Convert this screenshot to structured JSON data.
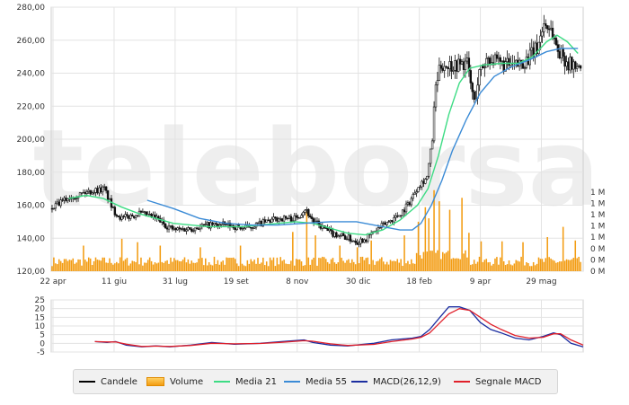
{
  "chart_data": {
    "type": "candlestick",
    "price_axis": {
      "min": 120,
      "max": 280,
      "ticks": [
        "120,00",
        "140,00",
        "160,00",
        "180,00",
        "200,00",
        "220,00",
        "240,00",
        "260,00",
        "280,00"
      ]
    },
    "volume_axis": {
      "ticks": [
        "0 M",
        "0 M",
        "0 M",
        "1 M",
        "1 M",
        "1 M",
        "1 M",
        "1 M"
      ]
    },
    "x_axis": {
      "labels": [
        "22 apr",
        "11 giu",
        "31 lug",
        "19 set",
        "8 nov",
        "30 dic",
        "18 feb",
        "9 apr",
        "29 mag"
      ],
      "label_index": [
        0,
        35,
        70,
        105,
        140,
        175,
        210,
        245,
        280
      ]
    },
    "price_points": [
      [
        0,
        158
      ],
      [
        10,
        165
      ],
      [
        20,
        168
      ],
      [
        30,
        170
      ],
      [
        35,
        157
      ],
      [
        40,
        152
      ],
      [
        50,
        155
      ],
      [
        60,
        152
      ],
      [
        65,
        148
      ],
      [
        70,
        145
      ],
      [
        80,
        146
      ],
      [
        90,
        148
      ],
      [
        100,
        148
      ],
      [
        110,
        146
      ],
      [
        120,
        149
      ],
      [
        130,
        152
      ],
      [
        140,
        152
      ],
      [
        145,
        158
      ],
      [
        150,
        150
      ],
      [
        160,
        143
      ],
      [
        165,
        142
      ],
      [
        175,
        138
      ],
      [
        180,
        140
      ],
      [
        185,
        144
      ],
      [
        190,
        148
      ],
      [
        200,
        155
      ],
      [
        205,
        162
      ],
      [
        210,
        172
      ],
      [
        215,
        177
      ],
      [
        218,
        200
      ],
      [
        220,
        232
      ],
      [
        223,
        245
      ],
      [
        230,
        245
      ],
      [
        238,
        246
      ],
      [
        242,
        222
      ],
      [
        245,
        240
      ],
      [
        250,
        250
      ],
      [
        255,
        246
      ],
      [
        265,
        244
      ],
      [
        272,
        248
      ],
      [
        278,
        255
      ],
      [
        282,
        270
      ],
      [
        286,
        267
      ],
      [
        290,
        254
      ],
      [
        296,
        246
      ],
      [
        302,
        243
      ]
    ],
    "series": [
      {
        "name": "Media 21",
        "color": "#3ddc84",
        "points": [
          [
            10,
            164
          ],
          [
            20,
            166
          ],
          [
            30,
            164
          ],
          [
            40,
            159
          ],
          [
            50,
            155
          ],
          [
            60,
            152
          ],
          [
            70,
            149
          ],
          [
            80,
            148
          ],
          [
            90,
            147
          ],
          [
            100,
            147
          ],
          [
            110,
            147
          ],
          [
            120,
            148
          ],
          [
            130,
            149
          ],
          [
            140,
            150
          ],
          [
            150,
            149
          ],
          [
            160,
            146
          ],
          [
            170,
            143
          ],
          [
            180,
            142
          ],
          [
            190,
            145
          ],
          [
            200,
            151
          ],
          [
            210,
            160
          ],
          [
            216,
            170
          ],
          [
            222,
            190
          ],
          [
            228,
            215
          ],
          [
            234,
            234
          ],
          [
            240,
            243
          ],
          [
            248,
            245
          ],
          [
            258,
            246
          ],
          [
            268,
            246
          ],
          [
            276,
            250
          ],
          [
            284,
            259
          ],
          [
            290,
            263
          ],
          [
            296,
            259
          ],
          [
            302,
            252
          ]
        ]
      },
      {
        "name": "Media 55",
        "color": "#3b8bd6",
        "points": [
          [
            55,
            163
          ],
          [
            70,
            158
          ],
          [
            85,
            152
          ],
          [
            100,
            149
          ],
          [
            115,
            148
          ],
          [
            130,
            148
          ],
          [
            145,
            149
          ],
          [
            160,
            150
          ],
          [
            175,
            150
          ],
          [
            190,
            147
          ],
          [
            200,
            145
          ],
          [
            207,
            145
          ],
          [
            212,
            149
          ],
          [
            218,
            160
          ],
          [
            224,
            175
          ],
          [
            230,
            193
          ],
          [
            238,
            212
          ],
          [
            246,
            228
          ],
          [
            254,
            238
          ],
          [
            264,
            244
          ],
          [
            274,
            248
          ],
          [
            284,
            253
          ],
          [
            292,
            255
          ],
          [
            302,
            255
          ]
        ]
      }
    ],
    "volume": {
      "color": "#f39c12",
      "spikes": [
        [
          18,
          0.3
        ],
        [
          40,
          0.38
        ],
        [
          49,
          0.34
        ],
        [
          62,
          0.3
        ],
        [
          85,
          0.28
        ],
        [
          108,
          0.3
        ],
        [
          138,
          0.46
        ],
        [
          146,
          0.7
        ],
        [
          151,
          0.42
        ],
        [
          165,
          0.3
        ],
        [
          175,
          0.28
        ],
        [
          183,
          0.36
        ],
        [
          202,
          0.42
        ],
        [
          210,
          0.58
        ],
        [
          214,
          0.75
        ],
        [
          216,
          0.62
        ],
        [
          219,
          0.95
        ],
        [
          222,
          0.82
        ],
        [
          228,
          0.72
        ],
        [
          235,
          0.86
        ],
        [
          239,
          0.45
        ],
        [
          246,
          0.35
        ],
        [
          258,
          0.35
        ],
        [
          270,
          0.34
        ],
        [
          284,
          0.4
        ],
        [
          293,
          0.52
        ],
        [
          300,
          0.36
        ]
      ]
    },
    "macd": {
      "axis_ticks": [
        "-5",
        "0",
        "5",
        "10",
        "15",
        "20",
        "25"
      ],
      "min": -5,
      "max": 25,
      "series": [
        {
          "name": "MACD(26,12,9)",
          "color": "#1c2ea0",
          "points": [
            [
              25,
              1
            ],
            [
              32,
              0.5
            ],
            [
              37,
              1
            ],
            [
              43,
              -1
            ],
            [
              52,
              -2
            ],
            [
              60,
              -1.5
            ],
            [
              68,
              -2
            ],
            [
              80,
              -1
            ],
            [
              92,
              0.5
            ],
            [
              105,
              -0.5
            ],
            [
              120,
              0
            ],
            [
              132,
              1
            ],
            [
              145,
              2
            ],
            [
              150,
              0.5
            ],
            [
              160,
              -1
            ],
            [
              170,
              -1.5
            ],
            [
              185,
              0
            ],
            [
              195,
              2
            ],
            [
              207,
              3
            ],
            [
              212,
              4
            ],
            [
              217,
              8
            ],
            [
              222,
              14
            ],
            [
              228,
              21
            ],
            [
              234,
              21
            ],
            [
              240,
              19
            ],
            [
              246,
              12
            ],
            [
              252,
              8
            ],
            [
              258,
              6
            ],
            [
              266,
              3
            ],
            [
              274,
              2
            ],
            [
              282,
              4
            ],
            [
              288,
              6
            ],
            [
              292,
              5
            ],
            [
              298,
              0
            ],
            [
              305,
              -2
            ]
          ]
        },
        {
          "name": "Segnale MACD",
          "color": "#e0202a",
          "points": [
            [
              25,
              1
            ],
            [
              32,
              0.8
            ],
            [
              37,
              0.8
            ],
            [
              43,
              -0.5
            ],
            [
              52,
              -1.8
            ],
            [
              60,
              -1.6
            ],
            [
              68,
              -1.8
            ],
            [
              80,
              -1.2
            ],
            [
              92,
              0
            ],
            [
              105,
              -0.3
            ],
            [
              120,
              -0.1
            ],
            [
              132,
              0.6
            ],
            [
              145,
              1.5
            ],
            [
              150,
              1.2
            ],
            [
              160,
              -0.3
            ],
            [
              170,
              -1.2
            ],
            [
              185,
              -0.6
            ],
            [
              195,
              1
            ],
            [
              207,
              2.5
            ],
            [
              212,
              3.5
            ],
            [
              217,
              6
            ],
            [
              222,
              11
            ],
            [
              228,
              17
            ],
            [
              234,
              20
            ],
            [
              240,
              19
            ],
            [
              246,
              15
            ],
            [
              252,
              11
            ],
            [
              258,
              8
            ],
            [
              266,
              4.5
            ],
            [
              274,
              3
            ],
            [
              282,
              3.5
            ],
            [
              288,
              5.5
            ],
            [
              292,
              5.5
            ],
            [
              298,
              2
            ],
            [
              305,
              -1
            ]
          ]
        }
      ]
    },
    "legend": [
      {
        "label": "Candele",
        "color": "#000000",
        "kind": "line"
      },
      {
        "label": "Volume",
        "color": "#f39c12",
        "kind": "volume"
      },
      {
        "label": "Media 21",
        "color": "#3ddc84",
        "kind": "line"
      },
      {
        "label": "Media 55",
        "color": "#3b8bd6",
        "kind": "line"
      },
      {
        "label": "MACD(26,12,9)",
        "color": "#1c2ea0",
        "kind": "line"
      },
      {
        "label": "Segnale MACD",
        "color": "#e0202a",
        "kind": "line"
      }
    ],
    "watermark": "teleborsa",
    "grid": true
  }
}
